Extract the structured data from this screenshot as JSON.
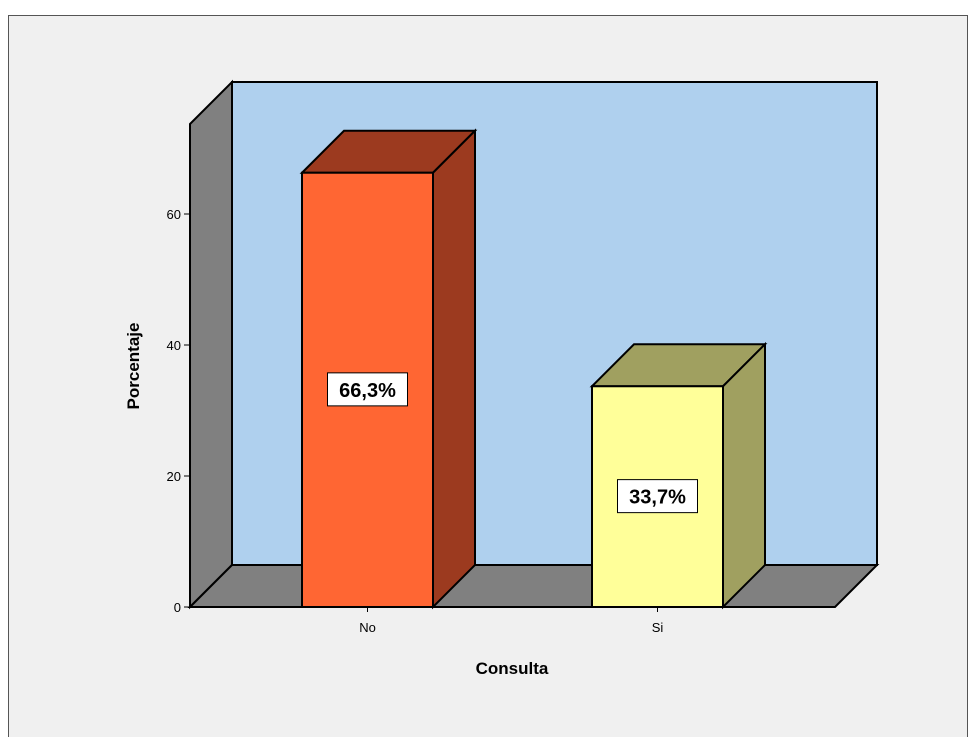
{
  "chart_data": {
    "type": "bar",
    "three_d": true,
    "categories": [
      "No",
      "Si"
    ],
    "values": [
      66.3,
      33.7
    ],
    "data_labels": [
      "66,3%",
      "33,7%"
    ],
    "colors": [
      "#ff6633",
      "#ffff99"
    ],
    "title": "",
    "xlabel": "Consulta",
    "ylabel": "Porcentaje",
    "ylim": [
      0,
      70
    ],
    "yticks": [
      0,
      20,
      40,
      60
    ],
    "ytick_labels": [
      "0",
      "20",
      "40",
      "60"
    ],
    "grid": false,
    "wall_color": "#afd0ee",
    "side_color": "#808080"
  }
}
